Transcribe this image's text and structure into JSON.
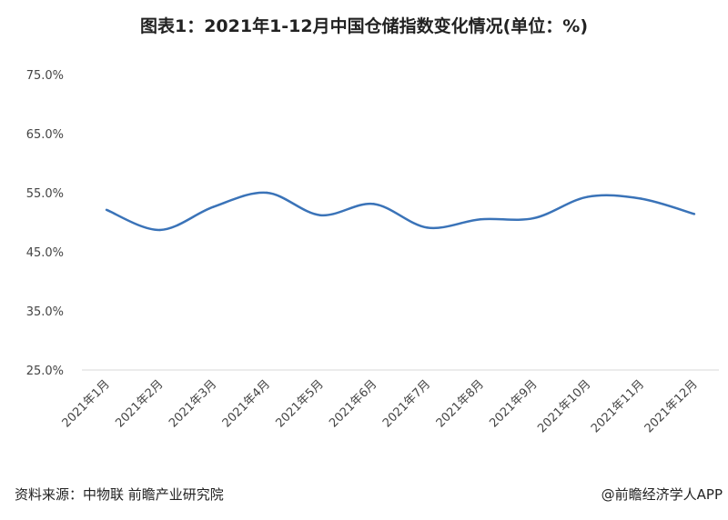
{
  "chart_data": {
    "type": "line",
    "title": "图表1：2021年1-12月中国仓储指数变化情况(单位：%)",
    "categories": [
      "2021年1月",
      "2021年2月",
      "2021年3月",
      "2021年4月",
      "2021年5月",
      "2021年6月",
      "2021年7月",
      "2021年8月",
      "2021年9月",
      "2021年10月",
      "2021年11月",
      "2021年12月"
    ],
    "series": [
      {
        "values": [
          52.1,
          48.7,
          52.6,
          55.0,
          51.2,
          53.1,
          49.1,
          50.5,
          50.7,
          54.3,
          54.0,
          51.4
        ]
      }
    ],
    "yticks": [
      "25.0%",
      "35.0%",
      "45.0%",
      "55.0%",
      "65.0%",
      "75.0%"
    ],
    "ylim": [
      25,
      75
    ],
    "grid": false,
    "smooth": true,
    "line_color": "#3a73b8"
  },
  "footer": {
    "source": "资料来源：中物联 前瞻产业研究院",
    "brand": "@前瞻经济学人APP"
  }
}
